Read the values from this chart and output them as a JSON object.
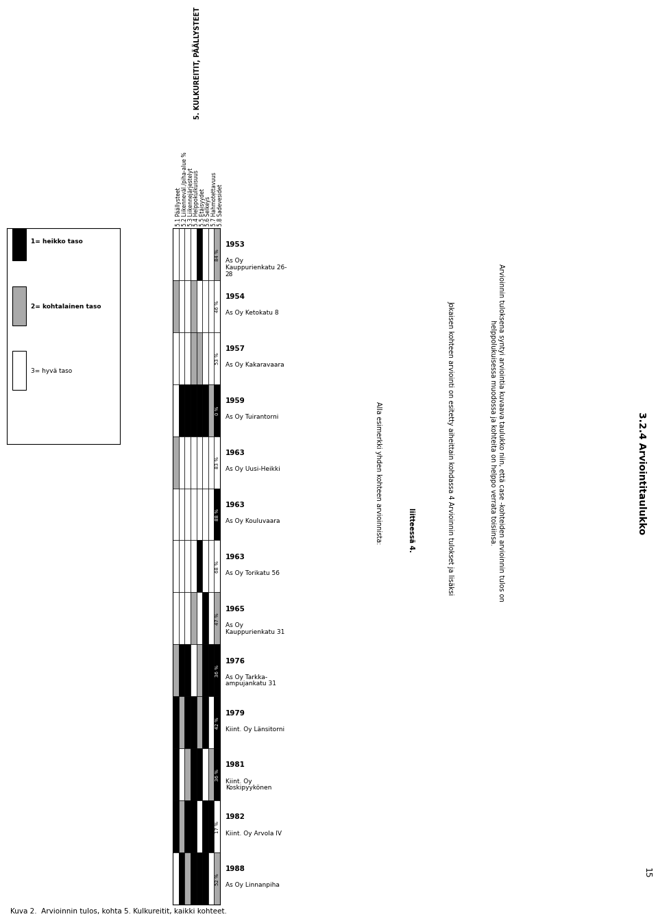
{
  "title": "5. KULKUREITIT, PÄÄLLYSTEET",
  "subtitle_items": [
    "5.1 Päällysteet",
    "5.2 Liikenneväl./piha-alue %",
    "5.3 Liikennejärjestelyt",
    "5.4 Helppokulkuisuus",
    "5.5 Etäisyydet",
    "5.6 Selkeys",
    "5.7 Hahmotettavuus",
    "5.8 Sadevesidet"
  ],
  "rows": [
    {
      "year": "1953",
      "label": "As Oy\nKauppurienkatu 26-\n28",
      "pct": "84 %",
      "colors": [
        "w",
        "w",
        "w",
        "w",
        "k",
        "w",
        "w",
        "gray"
      ]
    },
    {
      "year": "1954",
      "label": "As Oy Ketokatu 8",
      "pct": "46 %",
      "colors": [
        "gray",
        "w",
        "w",
        "gray",
        "w",
        "w",
        "w",
        "w"
      ]
    },
    {
      "year": "1957",
      "label": "As Oy Kakaravaara",
      "pct": "53 %",
      "colors": [
        "w",
        "w",
        "w",
        "gray",
        "gray",
        "w",
        "w",
        "w"
      ]
    },
    {
      "year": "1959",
      "label": "As Oy Tuirantorni",
      "pct": "0 %",
      "colors": [
        "w",
        "k",
        "k",
        "k",
        "k",
        "k",
        "gray",
        "k"
      ]
    },
    {
      "year": "1963",
      "label": "As Oy Uusi-Heikki",
      "pct": "83 %",
      "colors": [
        "gray",
        "w",
        "w",
        "w",
        "w",
        "w",
        "w",
        "w"
      ]
    },
    {
      "year": "1963",
      "label": "As Oy Kouluvaara",
      "pct": "88 %",
      "colors": [
        "w",
        "w",
        "w",
        "w",
        "w",
        "w",
        "w",
        "k"
      ]
    },
    {
      "year": "1963",
      "label": "As Oy Torikatu 56",
      "pct": "68 %",
      "colors": [
        "w",
        "w",
        "w",
        "w",
        "k",
        "w",
        "w",
        "w"
      ]
    },
    {
      "year": "1965",
      "label": "As Oy\nKauppurienkatu 31",
      "pct": "47 %",
      "colors": [
        "w",
        "w",
        "w",
        "gray",
        "w",
        "k",
        "w",
        "gray"
      ]
    },
    {
      "year": "1976",
      "label": "As Oy Tarkka-\nampujankatu 31",
      "pct": "36 %",
      "colors": [
        "gray",
        "k",
        "k",
        "w",
        "gray",
        "k",
        "k",
        "k"
      ]
    },
    {
      "year": "1979",
      "label": "Kiint. Oy Länsitorni",
      "pct": "42 %",
      "colors": [
        "k",
        "gray",
        "k",
        "k",
        "gray",
        "k",
        "w",
        "k"
      ]
    },
    {
      "year": "1981",
      "label": "Kiint. Oy\nKoskipyykönen",
      "pct": "36 %",
      "colors": [
        "k",
        "w",
        "gray",
        "k",
        "k",
        "w",
        "gray",
        "k"
      ]
    },
    {
      "year": "1982",
      "label": "Kiint. Oy Arvola IV",
      "pct": "17 %",
      "colors": [
        "k",
        "gray",
        "k",
        "k",
        "w",
        "k",
        "k",
        "w"
      ]
    },
    {
      "year": "1988",
      "label": "As Oy Linnanpiha",
      "pct": "52 %",
      "colors": [
        "w",
        "k",
        "gray",
        "k",
        "k",
        "k",
        "w",
        "gray"
      ]
    }
  ],
  "legend": {
    "items": [
      "1= heikko taso",
      "2= kohtalainen taso",
      "3= hyvä taso"
    ],
    "colors": [
      "k",
      "gray",
      "w"
    ]
  },
  "n_cols": 8,
  "page_heading": "3.2.4 Arviointitaulukko",
  "bottom_caption": "Kuva 2.  Arvioinnin tulos, kohta 5. Kulkureitit, kaikki kohteet.",
  "page_number": "15"
}
